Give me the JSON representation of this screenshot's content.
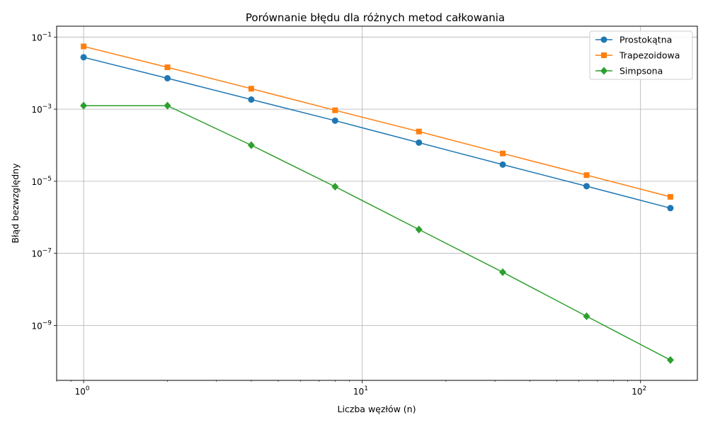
{
  "chart_data": {
    "type": "line",
    "title": "Porównanie błędu dla różnych metod całkowania",
    "xlabel": "Liczba węzłów (n)",
    "ylabel": "Błąd bezwzględny",
    "x_scale": "log",
    "y_scale": "log",
    "xlim": [
      0.8,
      160
    ],
    "ylim": [
      3e-11,
      0.2
    ],
    "grid": true,
    "legend_position": "top-right",
    "x_ticks": [
      {
        "value": 1,
        "base": "10",
        "exp": "0"
      },
      {
        "value": 10,
        "base": "10",
        "exp": "1"
      },
      {
        "value": 100,
        "base": "10",
        "exp": "2"
      }
    ],
    "y_ticks": [
      {
        "value": 1e-09,
        "base": "10",
        "exp": "−9"
      },
      {
        "value": 1e-07,
        "base": "10",
        "exp": "−7"
      },
      {
        "value": 1e-05,
        "base": "10",
        "exp": "−5"
      },
      {
        "value": 0.001,
        "base": "10",
        "exp": "−3"
      },
      {
        "value": 0.1,
        "base": "10",
        "exp": "−1"
      }
    ],
    "x": [
      1,
      2,
      4,
      8,
      16,
      32,
      64,
      128
    ],
    "series": [
      {
        "name": "Prostokątna",
        "color": "#1f77b4",
        "marker": "circle",
        "values": [
          0.0275,
          0.0072,
          0.00185,
          0.00048,
          0.000118,
          2.9e-05,
          7.3e-06,
          1.8e-06
        ]
      },
      {
        "name": "Trapezoidowa",
        "color": "#ff7f0e",
        "marker": "square",
        "values": [
          0.055,
          0.0145,
          0.0037,
          0.00093,
          0.00024,
          5.9e-05,
          1.48e-05,
          3.7e-06
        ]
      },
      {
        "name": "Simpsona",
        "color": "#2ca02c",
        "marker": "diamond",
        "values": [
          0.00125,
          0.00125,
          0.0001,
          7.1e-06,
          4.6e-07,
          3e-08,
          1.8e-09,
          1.1e-10
        ]
      }
    ]
  }
}
